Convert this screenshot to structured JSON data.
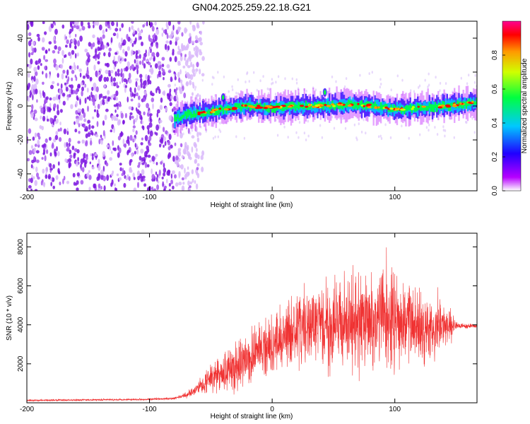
{
  "title": "GN04.2025.259.22.18.G21",
  "chart_data": [
    {
      "type": "heatmap",
      "xlabel": "Height of straight line (km)",
      "ylabel": "Frequency (Hz)",
      "xlim": [
        -200,
        167
      ],
      "ylim": [
        -50,
        50
      ],
      "x_ticks": [
        -200,
        -100,
        0,
        100
      ],
      "y_ticks": [
        -40,
        -20,
        0,
        20,
        40
      ],
      "noise_region_x": [
        -200,
        -60
      ],
      "signal_band": {
        "x_start": -80,
        "x_end": 167,
        "center_hz": [
          {
            "x": -80,
            "y": -8
          },
          {
            "x": -70,
            "y": -5
          },
          {
            "x": -55,
            "y": -4
          },
          {
            "x": -40,
            "y": -2
          },
          {
            "x": -20,
            "y": 0
          },
          {
            "x": 0,
            "y": -1
          },
          {
            "x": 20,
            "y": 0
          },
          {
            "x": 40,
            "y": 0
          },
          {
            "x": 60,
            "y": 1
          },
          {
            "x": 80,
            "y": 0
          },
          {
            "x": 100,
            "y": -2
          },
          {
            "x": 120,
            "y": -1
          },
          {
            "x": 140,
            "y": 0
          },
          {
            "x": 167,
            "y": 2
          }
        ]
      },
      "spikes": [
        {
          "x": -40,
          "y": 7
        },
        {
          "x": 43,
          "y": 10
        }
      ],
      "colorbar": {
        "label": "Normalized spectral amplitude",
        "range": [
          0,
          1
        ],
        "ticks": [
          0.0,
          0.2,
          0.4,
          0.6,
          0.8
        ],
        "tick_labels": [
          "0.0",
          "0.2",
          "0.4",
          "0.6",
          "0.8"
        ],
        "colors": [
          "#ffffff",
          "#b600ff",
          "#2000ff",
          "#00c8ff",
          "#00ff40",
          "#d0ff00",
          "#ff9a00",
          "#ff0000",
          "#ff0090"
        ]
      }
    },
    {
      "type": "line",
      "xlabel": "Height of straight line (km)",
      "ylabel": "SNR (10 * v/v)",
      "xlim": [
        -200,
        167
      ],
      "ylim": [
        0,
        8700
      ],
      "x_ticks": [
        -200,
        -100,
        0,
        100
      ],
      "y_ticks": [
        2000,
        4000,
        6000,
        8000
      ],
      "color": "#f03232",
      "envelope": {
        "x": [
          -200,
          -100,
          -80,
          -70,
          -60,
          -50,
          -40,
          -30,
          -20,
          -10,
          0,
          10,
          20,
          30,
          40,
          50,
          60,
          70,
          80,
          90,
          95,
          100,
          110,
          120,
          130,
          140,
          150,
          167
        ],
        "mean": [
          120,
          180,
          220,
          400,
          800,
          1300,
          1500,
          1800,
          2200,
          2700,
          3000,
          3400,
          3700,
          3900,
          4000,
          4000,
          4100,
          4100,
          4200,
          4300,
          4300,
          4200,
          4100,
          4000,
          3900,
          3900,
          3950,
          3950
        ],
        "amp": [
          70,
          70,
          100,
          200,
          500,
          1100,
          1500,
          1800,
          1900,
          2000,
          2200,
          2400,
          2700,
          2900,
          3000,
          3100,
          3200,
          3300,
          3400,
          3700,
          4300,
          3600,
          3000,
          2600,
          2300,
          2200,
          250,
          150
        ]
      }
    }
  ]
}
